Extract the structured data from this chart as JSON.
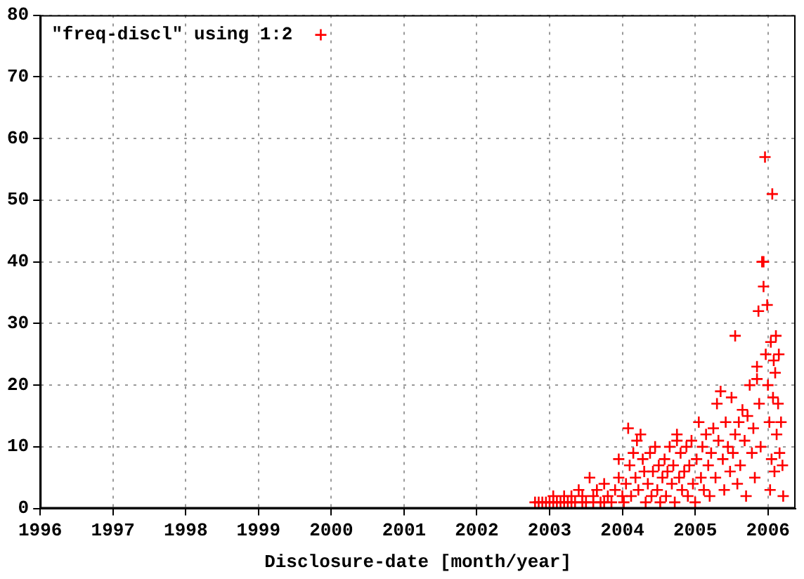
{
  "chart_data": {
    "type": "scatter",
    "xlabel": "Disclosure-date [month/year]",
    "xlim": [
      1996,
      2006.38
    ],
    "xticks": [
      1996,
      1997,
      1998,
      1999,
      2000,
      2001,
      2002,
      2003,
      2004,
      2005,
      2006
    ],
    "ylim": [
      0,
      80
    ],
    "yticks": [
      0,
      10,
      20,
      30,
      40,
      50,
      60,
      70,
      80
    ],
    "grid": true,
    "legend": "top left",
    "marker": "cross",
    "series": [
      {
        "name": "\"freq-discl\" using 1:2",
        "color": "#ff0000",
        "x": [
          2002.8,
          2002.85,
          2002.9,
          2002.95,
          2003.0,
          2003.05,
          2003.1,
          2003.15,
          2003.2,
          2003.25,
          2003.3,
          2003.3,
          2003.35,
          2003.4,
          2003.45,
          2003.5,
          2003.55,
          2003.6,
          2003.65,
          2003.7,
          2003.75,
          2003.8,
          2003.85,
          2003.9,
          2003.95,
          2003.95,
          2004.0,
          2003.75,
          2003.6,
          2003.45,
          2003.2,
          2003.05,
          2004.02,
          2004.05,
          2004.08,
          2004.1,
          2004.12,
          2004.15,
          2004.18,
          2004.2,
          2004.22,
          2004.25,
          2004.28,
          2004.3,
          2004.32,
          2004.35,
          2004.38,
          2004.4,
          2004.42,
          2004.45,
          2004.48,
          2004.5,
          2004.52,
          2004.55,
          2004.58,
          2004.6,
          2004.62,
          2004.65,
          2004.68,
          2004.7,
          2004.72,
          2004.75,
          2004.75,
          2004.78,
          2004.8,
          2004.82,
          2004.85,
          2004.88,
          2004.9,
          2004.92,
          2004.95,
          2004.97,
          2005.0,
          2005.02,
          2005.05,
          2005.08,
          2005.1,
          2005.12,
          2005.15,
          2005.18,
          2005.2,
          2005.22,
          2005.25,
          2005.28,
          2005.3,
          2005.32,
          2005.35,
          2005.38,
          2005.4,
          2005.42,
          2005.45,
          2005.48,
          2005.5,
          2005.52,
          2005.55,
          2005.55,
          2005.58,
          2005.6,
          2005.62,
          2005.65,
          2005.68,
          2005.7,
          2005.72,
          2005.75,
          2005.78,
          2005.8,
          2005.82,
          2005.85,
          2005.85,
          2005.87,
          2005.88,
          2005.9,
          2005.92,
          2005.94,
          2005.94,
          2005.96,
          2005.97,
          2005.99,
          2006.0,
          2006.02,
          2006.03,
          2006.04,
          2006.05,
          2006.06,
          2006.07,
          2006.08,
          2006.09,
          2006.1,
          2006.11,
          2006.12,
          2006.14,
          2006.15,
          2006.16,
          2006.18,
          2006.2,
          2006.21
        ],
        "values": [
          1,
          1,
          1,
          1,
          1,
          1,
          1,
          1,
          1,
          1,
          1,
          2,
          1,
          3,
          2,
          1,
          5,
          2,
          3,
          1,
          4,
          2,
          1,
          3,
          8,
          5,
          2,
          1,
          1,
          1,
          2,
          2,
          1,
          4,
          13,
          7,
          2,
          9,
          5,
          11,
          3,
          12,
          8,
          6,
          1,
          4,
          9,
          2,
          6,
          10,
          3,
          7,
          1,
          5,
          8,
          2,
          6,
          10,
          4,
          7,
          1,
          11,
          12,
          5,
          9,
          3,
          6,
          10,
          2,
          7,
          11,
          4,
          1,
          8,
          14,
          5,
          10,
          3,
          12,
          7,
          2,
          9,
          13,
          5,
          17,
          11,
          19,
          8,
          3,
          14,
          10,
          6,
          18,
          9,
          12,
          28,
          4,
          14,
          7,
          16,
          11,
          2,
          15,
          20,
          9,
          13,
          5,
          21,
          23,
          32,
          17,
          10,
          40,
          40,
          36,
          57,
          25,
          33,
          20,
          14,
          3,
          27,
          8,
          51,
          18,
          24,
          6,
          22,
          28,
          12,
          17,
          25,
          9,
          14,
          7,
          2
        ]
      }
    ]
  }
}
